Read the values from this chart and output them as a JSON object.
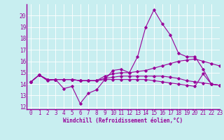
{
  "xlabel": "Windchill (Refroidissement éolien,°C)",
  "background_color": "#c8eef0",
  "line_color": "#990099",
  "ylim": [
    11.8,
    21.0
  ],
  "xlim": [
    -0.5,
    23
  ],
  "yticks": [
    12,
    13,
    14,
    15,
    16,
    17,
    18,
    19,
    20
  ],
  "xticks": [
    0,
    1,
    2,
    3,
    4,
    5,
    6,
    7,
    8,
    9,
    10,
    11,
    12,
    13,
    14,
    15,
    16,
    17,
    18,
    19,
    20,
    21,
    22,
    23
  ],
  "series": [
    [
      14.2,
      14.8,
      14.3,
      14.4,
      13.6,
      13.8,
      12.3,
      13.2,
      13.5,
      14.4,
      15.2,
      15.3,
      15.0,
      16.4,
      19.0,
      20.5,
      19.3,
      18.3,
      16.7,
      16.4,
      16.4,
      15.3,
      14.0,
      13.9
    ],
    [
      14.2,
      14.8,
      14.4,
      14.4,
      14.4,
      14.4,
      14.3,
      14.3,
      14.3,
      14.7,
      14.9,
      15.0,
      15.0,
      15.1,
      15.2,
      15.4,
      15.6,
      15.8,
      16.0,
      16.1,
      16.2,
      16.0,
      15.8,
      15.6
    ],
    [
      14.2,
      14.8,
      14.4,
      14.4,
      14.4,
      14.4,
      14.3,
      14.3,
      14.3,
      14.5,
      14.6,
      14.7,
      14.7,
      14.7,
      14.7,
      14.7,
      14.7,
      14.6,
      14.5,
      14.3,
      14.2,
      14.1,
      14.0,
      13.9
    ],
    [
      14.2,
      14.8,
      14.4,
      14.4,
      14.4,
      14.4,
      14.3,
      14.3,
      14.3,
      14.4,
      14.4,
      14.4,
      14.4,
      14.4,
      14.4,
      14.3,
      14.2,
      14.1,
      14.0,
      13.9,
      13.8,
      14.9,
      14.0,
      13.9
    ]
  ],
  "tick_fontsize": 5.5,
  "xlabel_fontsize": 5.5
}
